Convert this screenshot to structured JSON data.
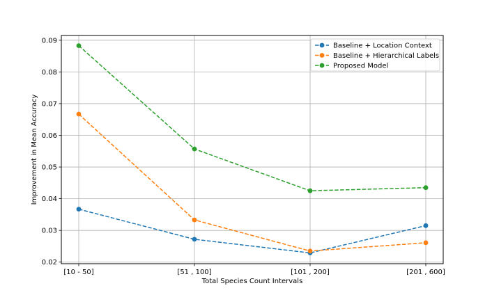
{
  "chart_data": {
    "type": "line",
    "title": "",
    "xlabel": "Total Species Count Intervals",
    "ylabel": "Improvement in Mean Accuracy",
    "categories": [
      "[10 - 50]",
      "[51 , 100]",
      "[101 , 200]",
      "[201 , 600]"
    ],
    "ylim": [
      0.0195,
      0.0915
    ],
    "yticks": [
      0.02,
      0.03,
      0.04,
      0.05,
      0.06,
      0.07,
      0.08,
      0.09
    ],
    "ytick_labels": [
      "0.02",
      "0.03",
      "0.04",
      "0.05",
      "0.06",
      "0.07",
      "0.08",
      "0.09"
    ],
    "grid": true,
    "legend_position": "top-right",
    "series": [
      {
        "name": "Baseline + Location Context",
        "color": "#1f77b4",
        "values": [
          0.0367,
          0.0272,
          0.0229,
          0.0315
        ]
      },
      {
        "name": "Baseline + Hierarchical Labels",
        "color": "#ff7f0e",
        "values": [
          0.0667,
          0.0333,
          0.0235,
          0.0261
        ]
      },
      {
        "name": "Proposed Model",
        "color": "#2ca02c",
        "values": [
          0.0883,
          0.0557,
          0.0425,
          0.0435
        ]
      }
    ]
  }
}
